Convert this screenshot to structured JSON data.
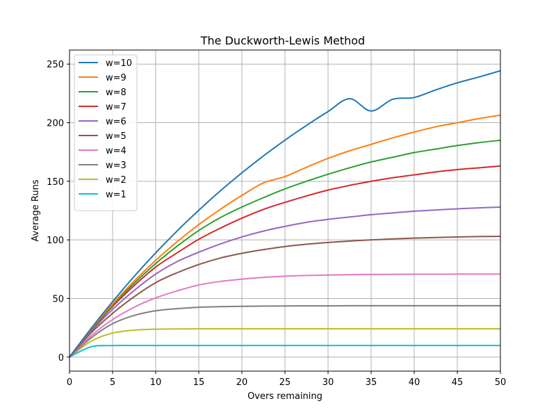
{
  "chart_data": {
    "type": "line",
    "title": "The Duckworth-Lewis Method",
    "xlabel": "Overs remaining",
    "ylabel": "Average Runs",
    "xlim": [
      0,
      50
    ],
    "ylim": [
      -12,
      262
    ],
    "xticks": [
      "0",
      "5",
      "10",
      "15",
      "20",
      "25",
      "30",
      "35",
      "40",
      "45",
      "50"
    ],
    "yticks": [
      "0",
      "50",
      "100",
      "150",
      "200",
      "250"
    ],
    "grid": true,
    "legend_position": "upper-left",
    "x": [
      0,
      2.5,
      5,
      7.5,
      10,
      12.5,
      15,
      17.5,
      20,
      22.5,
      25,
      27.5,
      30,
      32.5,
      35,
      37.5,
      40,
      42.5,
      45,
      47.5,
      50
    ],
    "series": [
      {
        "name": "w=10",
        "color": "#1f77b4",
        "values": [
          0,
          24.4,
          47.3,
          68.8,
          88.9,
          107.7,
          125.3,
          141.8,
          157.2,
          171.6,
          185.1,
          197.7,
          209.5,
          220.5,
          210.0,
          220.0,
          221.5,
          228.0,
          234.0,
          239.0,
          244.3
        ]
      },
      {
        "name": "w=9",
        "color": "#ff7f0e",
        "values": [
          0,
          23.8,
          45.3,
          64.8,
          82.5,
          98.5,
          113.0,
          126.1,
          137.9,
          148.6,
          154.0,
          162.0,
          169.5,
          176.0,
          181.5,
          187.0,
          192.0,
          196.5,
          200.0,
          203.5,
          206.5
        ]
      },
      {
        "name": "w=8",
        "color": "#2ca02c",
        "values": [
          0,
          23.3,
          44.3,
          63.0,
          79.8,
          94.7,
          108.0,
          119.0,
          128.0,
          136.0,
          143.5,
          150.0,
          156.0,
          161.5,
          166.5,
          170.5,
          174.5,
          177.5,
          180.5,
          183.0,
          185.0
        ]
      },
      {
        "name": "w=7",
        "color": "#d62728",
        "values": [
          0,
          22.8,
          43.2,
          61.0,
          76.8,
          89.0,
          100.5,
          110.0,
          118.5,
          126.0,
          132.0,
          137.5,
          142.5,
          146.5,
          150.0,
          153.0,
          155.5,
          158.0,
          160.0,
          161.5,
          163.0
        ]
      },
      {
        "name": "w=6",
        "color": "#9467bd",
        "values": [
          0,
          21.8,
          40.7,
          56.8,
          70.8,
          81.5,
          89.5,
          96.5,
          102.5,
          107.5,
          111.5,
          115.0,
          117.5,
          119.5,
          121.5,
          123.0,
          124.5,
          125.5,
          126.5,
          127.3,
          128.0
        ]
      },
      {
        "name": "w=5",
        "color": "#8c564b",
        "values": [
          0,
          20.5,
          37.3,
          51.5,
          63.5,
          72.0,
          79.0,
          84.5,
          88.5,
          91.7,
          94.3,
          96.3,
          97.8,
          99.0,
          100.0,
          100.8,
          101.5,
          102.0,
          102.5,
          102.8,
          103.0
        ]
      },
      {
        "name": "w=4",
        "color": "#e377c2",
        "values": [
          0,
          18.0,
          32.0,
          42.5,
          50.5,
          56.5,
          61.5,
          64.5,
          66.5,
          68.0,
          69.0,
          69.6,
          70.0,
          70.3,
          70.5,
          70.6,
          70.7,
          70.7,
          70.8,
          70.8,
          70.8
        ]
      },
      {
        "name": "w=3",
        "color": "#7f7f7f",
        "values": [
          0,
          16.3,
          28.5,
          35.5,
          39.5,
          41.3,
          42.5,
          43.0,
          43.3,
          43.5,
          43.6,
          43.7,
          43.7,
          43.8,
          43.8,
          43.8,
          43.8,
          43.8,
          43.8,
          43.8,
          43.8
        ]
      },
      {
        "name": "w=2",
        "color": "#bcbd22",
        "values": [
          0,
          13.5,
          20.5,
          23.0,
          23.8,
          24.0,
          24.1,
          24.1,
          24.1,
          24.1,
          24.1,
          24.1,
          24.1,
          24.1,
          24.1,
          24.1,
          24.1,
          24.1,
          24.1,
          24.1,
          24.1
        ]
      },
      {
        "name": "w=1",
        "color": "#17becf",
        "values": [
          0,
          8.8,
          9.8,
          9.9,
          9.9,
          9.9,
          9.9,
          9.9,
          9.9,
          9.9,
          9.9,
          9.9,
          9.9,
          9.9,
          9.9,
          9.9,
          9.9,
          9.9,
          9.9,
          9.9,
          9.9
        ]
      }
    ]
  }
}
